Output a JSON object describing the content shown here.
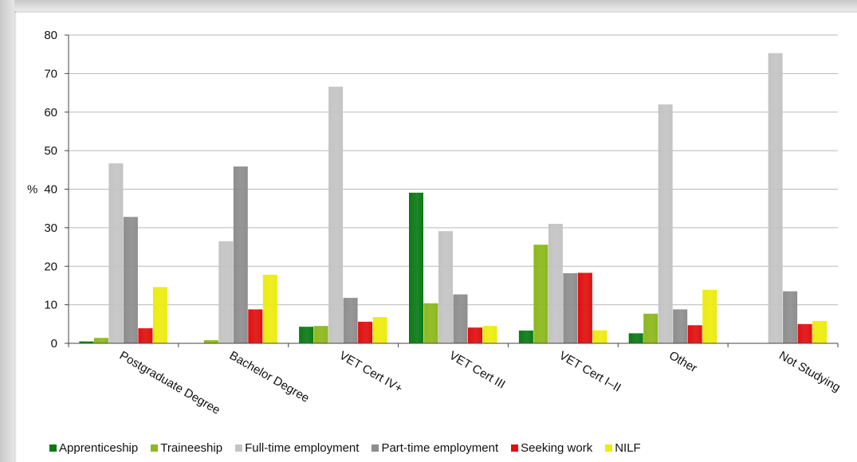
{
  "chart_data": {
    "type": "bar",
    "title": "",
    "xlabel": "",
    "ylabel": "%",
    "ylim": [
      0,
      80
    ],
    "yticks": [
      0,
      10,
      20,
      30,
      40,
      50,
      60,
      70,
      80
    ],
    "grid": true,
    "legend_position": "bottom",
    "categories": [
      "Postgraduate Degree",
      "Bachelor Degree",
      "VET Cert IV+",
      "VET Cert III",
      "VET Cert I–II",
      "Other",
      "Not Studying"
    ],
    "series": [
      {
        "name": "Apprenticeship",
        "color": "#0b7a15",
        "values": [
          0.5,
          0.1,
          4.3,
          39.1,
          3.3,
          2.6,
          0.1
        ]
      },
      {
        "name": "Traineeship",
        "color": "#8cb81d",
        "values": [
          1.4,
          0.8,
          4.5,
          10.4,
          25.6,
          7.7,
          0.1
        ]
      },
      {
        "name": "Full-time employment",
        "color": "#c4c4c4",
        "values": [
          46.7,
          26.5,
          66.6,
          29.1,
          31.0,
          62.0,
          75.3
        ]
      },
      {
        "name": "Part-time employment",
        "color": "#8e8e8e",
        "values": [
          32.8,
          45.9,
          11.8,
          12.7,
          18.2,
          8.8,
          13.5
        ]
      },
      {
        "name": "Seeking work",
        "color": "#e01010",
        "values": [
          3.9,
          8.8,
          5.6,
          4.1,
          18.3,
          4.7,
          5.0
        ]
      },
      {
        "name": "NILF",
        "color": "#ecec10",
        "values": [
          14.6,
          17.8,
          6.8,
          4.5,
          3.4,
          13.9,
          5.8
        ]
      }
    ]
  }
}
